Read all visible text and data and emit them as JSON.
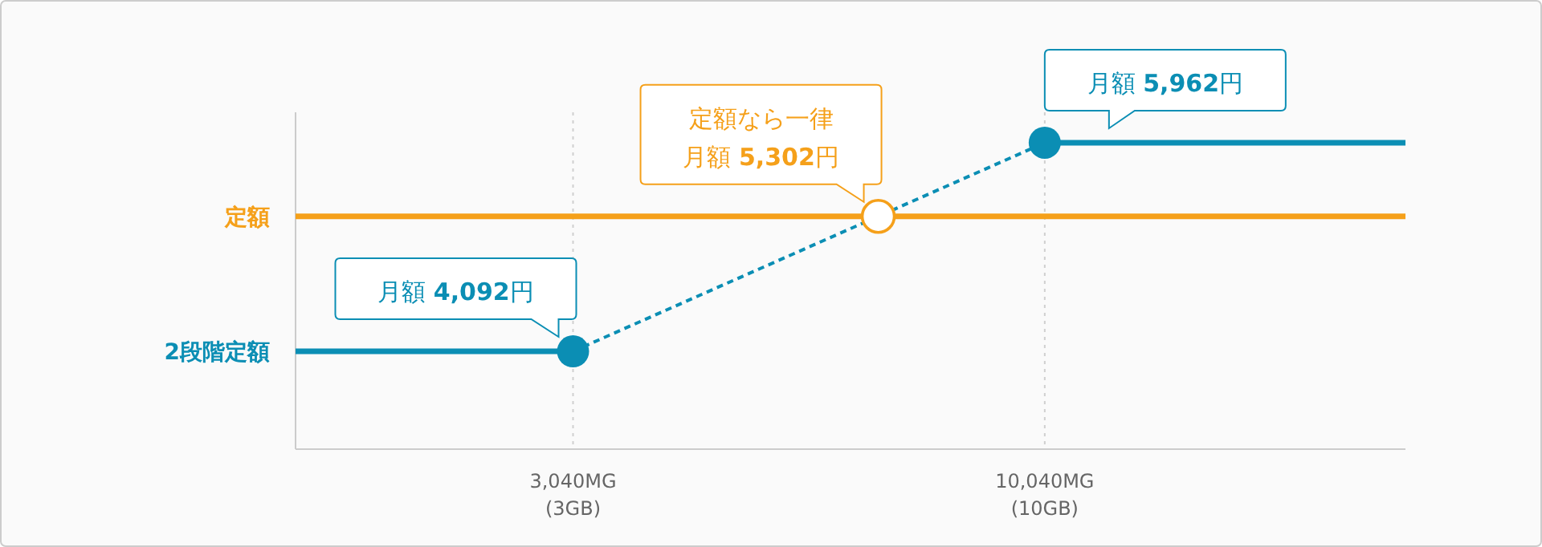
{
  "chart_data": {
    "type": "line",
    "ylim": [
      3215,
      6235
    ],
    "categories": [
      null,
      null,
      null,
      null,
      null,
      null,
      null,
      null,
      null,
      null,
      "3,040MG\n(3GB)",
      null,
      null,
      null,
      null,
      null,
      null,
      null,
      null,
      null,
      null,
      null,
      null,
      null,
      null,
      null,
      null,
      "10,040MG\n(10GB)",
      null,
      null,
      null,
      null,
      null,
      null,
      null,
      null,
      null,
      null,
      null,
      null,
      null
    ],
    "grid": "x",
    "series": [
      {
        "name": "2段階定額",
        "color": "#0b8eb4",
        "values": [
          4092,
          null,
          null,
          null,
          null,
          null,
          null,
          null,
          null,
          null,
          4092,
          null,
          null,
          null,
          null,
          null,
          null,
          null,
          null,
          null,
          null,
          null,
          null,
          null,
          null,
          null,
          null,
          null,
          null,
          null,
          null,
          null,
          null,
          null,
          null,
          null,
          null,
          null,
          null,
          null,
          null
        ],
        "line_style": "solid"
      },
      {
        "color": "#0b8eb4",
        "values": [
          null,
          null,
          null,
          null,
          null,
          null,
          null,
          null,
          null,
          null,
          4092,
          null,
          null,
          null,
          null,
          null,
          null,
          null,
          null,
          null,
          null,
          null,
          null,
          null,
          null,
          null,
          null,
          5962,
          null,
          null,
          null,
          null,
          null,
          null,
          null,
          null,
          null,
          null,
          null,
          null,
          null
        ],
        "value_labels": [
          null,
          null,
          null,
          null,
          null,
          null,
          null,
          null,
          null,
          null,
          "月額 4,092円",
          null,
          null,
          null,
          null,
          null,
          null,
          null,
          null,
          null,
          null,
          null,
          null,
          null,
          null,
          null,
          null,
          "月額 5,962円",
          null,
          null,
          null,
          null,
          null,
          null,
          null,
          null,
          null,
          null,
          null,
          null,
          null
        ],
        "line_style": "dashed",
        "marker": "circle"
      },
      {
        "color": "#0b8eb4",
        "values": [
          null,
          null,
          null,
          null,
          null,
          null,
          null,
          null,
          null,
          null,
          null,
          null,
          null,
          null,
          null,
          null,
          null,
          null,
          null,
          null,
          null,
          null,
          null,
          null,
          null,
          null,
          null,
          5962,
          null,
          null,
          null,
          null,
          null,
          null,
          null,
          null,
          null,
          null,
          null,
          null,
          5962
        ],
        "line_style": "solid"
      },
      {
        "name": "定額",
        "color": "#f5a01a",
        "values": [
          5302,
          null,
          null,
          null,
          null,
          null,
          null,
          null,
          null,
          null,
          null,
          null,
          null,
          null,
          null,
          null,
          null,
          null,
          null,
          null,
          null,
          5302,
          null,
          null,
          null,
          null,
          null,
          null,
          null,
          null,
          null,
          null,
          null,
          null,
          null,
          null,
          null,
          null,
          null,
          null,
          5302
        ],
        "value_labels": [
          null,
          null,
          null,
          null,
          null,
          null,
          null,
          null,
          null,
          null,
          null,
          null,
          null,
          null,
          null,
          null,
          null,
          null,
          null,
          null,
          null,
          "定額なら一律月額 5,302円",
          null,
          null,
          null,
          null,
          null,
          null,
          null,
          null,
          null,
          null,
          null,
          null,
          null,
          null,
          null,
          null,
          null,
          null,
          null
        ],
        "line_style": "solid"
      }
    ]
  }
}
